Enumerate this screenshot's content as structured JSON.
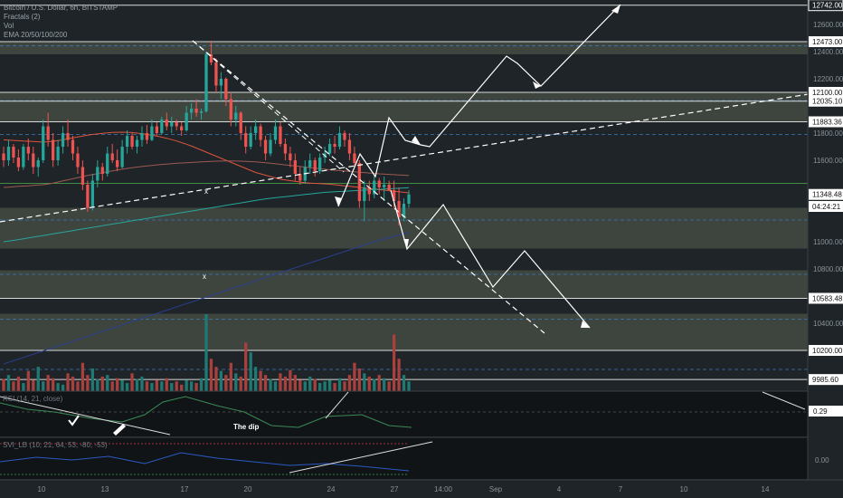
{
  "legend": {
    "symbol": "Bitcoin / U.S. Dollar, 6h, BITSTAMP",
    "fractals": "Fractals (2)",
    "vol": "Vol",
    "ema": "EMA 20/50/100/200"
  },
  "panes": {
    "rsi_label": "RSI (14, 21, close)",
    "lower_label": "SVI_LB (10, 21, 64, 53, -80, -53)",
    "annotation_dip": "The dip"
  },
  "colors": {
    "background": "#1e2427",
    "up": "#26a69a",
    "down": "#ef5350",
    "zone_fill": "#4a4f47",
    "trend_line": "#ffffff"
  },
  "chart_data": {
    "type": "candlestick",
    "title": "Bitcoin / U.S. Dollar, 6h, BITSTAMP",
    "price_axis": {
      "ticks": [
        12600,
        12400,
        12200,
        11800,
        11600,
        11000,
        10800,
        10400
      ],
      "ylim": [
        9900,
        12780
      ],
      "labels": [
        {
          "value": 12742.0,
          "text": "12742.00",
          "style": "outline"
        },
        {
          "value": 12473.0,
          "text": "12473.00",
          "style": "line"
        },
        {
          "value": 12100.0,
          "text": "12100.00",
          "style": "line"
        },
        {
          "value": 12035.1,
          "text": "12035.10",
          "style": "line"
        },
        {
          "value": 11883.36,
          "text": "11883.36",
          "style": "line"
        },
        {
          "value": 11348.48,
          "text": "11348.48",
          "style": "price"
        },
        {
          "value": 11260,
          "text": "04:24:21",
          "style": "price"
        },
        {
          "value": 10583.48,
          "text": "10583.48",
          "style": "line"
        },
        {
          "value": 10200.0,
          "text": "10200.00",
          "style": "line"
        },
        {
          "value": 9985.6,
          "text": "9985.60",
          "style": "line"
        }
      ]
    },
    "rsi_axis": {
      "label": "0.29"
    },
    "lower_axis": {
      "label": "0.00"
    },
    "time_axis": {
      "ticks": [
        "10",
        "13",
        "17",
        "20",
        "24",
        "27",
        "14:00",
        "Sep",
        "4",
        "7",
        "10",
        "14"
      ]
    },
    "zones": [
      {
        "from": 12380,
        "to": 12473
      },
      {
        "from": 11883.36,
        "to": 12100
      },
      {
        "from": 10950,
        "to": 11250
      },
      {
        "from": 10583.48,
        "to": 10790
      },
      {
        "from": 10200,
        "to": 10470
      }
    ],
    "series": [
      {
        "name": "BTC/USD",
        "kind": "ohlc",
        "values": [
          [
            11650,
            11700,
            11550,
            11600
          ],
          [
            11600,
            11750,
            11560,
            11700
          ],
          [
            11700,
            11720,
            11580,
            11620
          ],
          [
            11620,
            11680,
            11520,
            11550
          ],
          [
            11550,
            11720,
            11530,
            11700
          ],
          [
            11700,
            11760,
            11600,
            11650
          ],
          [
            11650,
            11700,
            11500,
            11550
          ],
          [
            11550,
            11620,
            11480,
            11600
          ],
          [
            11600,
            11900,
            11580,
            11850
          ],
          [
            11850,
            11950,
            11700,
            11750
          ],
          [
            11750,
            11800,
            11550,
            11600
          ],
          [
            11600,
            11750,
            11560,
            11700
          ],
          [
            11700,
            11850,
            11650,
            11800
          ],
          [
            11800,
            11900,
            11700,
            11750
          ],
          [
            11750,
            11780,
            11600,
            11650
          ],
          [
            11650,
            11700,
            11500,
            11550
          ],
          [
            11550,
            11600,
            11380,
            11420
          ],
          [
            11420,
            11450,
            11220,
            11250
          ],
          [
            11250,
            11500,
            11230,
            11450
          ],
          [
            11450,
            11600,
            11400,
            11550
          ],
          [
            11550,
            11580,
            11450,
            11500
          ],
          [
            11500,
            11700,
            11480,
            11650
          ],
          [
            11650,
            11720,
            11580,
            11600
          ],
          [
            11600,
            11680,
            11520,
            11550
          ],
          [
            11550,
            11750,
            11540,
            11700
          ],
          [
            11700,
            11820,
            11650,
            11780
          ],
          [
            11780,
            11800,
            11680,
            11700
          ],
          [
            11700,
            11780,
            11650,
            11750
          ],
          [
            11750,
            11850,
            11700,
            11800
          ],
          [
            11800,
            11860,
            11720,
            11750
          ],
          [
            11750,
            11900,
            11740,
            11850
          ],
          [
            11850,
            11880,
            11780,
            11800
          ],
          [
            11800,
            11920,
            11790,
            11900
          ],
          [
            11900,
            11950,
            11820,
            11850
          ],
          [
            11850,
            11920,
            11800,
            11880
          ],
          [
            11880,
            11900,
            11820,
            11850
          ],
          [
            11850,
            11880,
            11780,
            11820
          ],
          [
            11820,
            12000,
            11810,
            11950
          ],
          [
            11950,
            12020,
            11900,
            11980
          ],
          [
            11980,
            12050,
            11920,
            11950
          ],
          [
            11950,
            11980,
            11900,
            11960
          ],
          [
            11960,
            12400,
            11950,
            12380
          ],
          [
            12380,
            12480,
            12300,
            12320
          ],
          [
            12320,
            12350,
            12100,
            12150
          ],
          [
            12150,
            12250,
            12050,
            12200
          ],
          [
            12200,
            12210,
            12000,
            12050
          ],
          [
            12050,
            12100,
            11850,
            11900
          ],
          [
            11900,
            12000,
            11850,
            11950
          ],
          [
            11950,
            11960,
            11750,
            11800
          ],
          [
            11800,
            11850,
            11650,
            11700
          ],
          [
            11700,
            11850,
            11680,
            11800
          ],
          [
            11800,
            11900,
            11750,
            11850
          ],
          [
            11850,
            11870,
            11700,
            11750
          ],
          [
            11750,
            11780,
            11600,
            11650
          ],
          [
            11650,
            11800,
            11630,
            11750
          ],
          [
            11750,
            11900,
            11720,
            11850
          ],
          [
            11850,
            11880,
            11700,
            11720
          ],
          [
            11720,
            11760,
            11600,
            11650
          ],
          [
            11650,
            11700,
            11550,
            11600
          ],
          [
            11600,
            11650,
            11450,
            11500
          ],
          [
            11500,
            11550,
            11420,
            11450
          ],
          [
            11450,
            11600,
            11430,
            11550
          ],
          [
            11550,
            11650,
            11500,
            11600
          ],
          [
            11600,
            11620,
            11480,
            11520
          ],
          [
            11520,
            11650,
            11500,
            11620
          ],
          [
            11620,
            11700,
            11580,
            11650
          ],
          [
            11650,
            11760,
            11630,
            11720
          ],
          [
            11720,
            11780,
            11650,
            11700
          ],
          [
            11700,
            11850,
            11680,
            11800
          ],
          [
            11800,
            11820,
            11700,
            11750
          ],
          [
            11750,
            11800,
            11600,
            11650
          ],
          [
            11650,
            11700,
            11550,
            11580
          ],
          [
            11580,
            11600,
            11250,
            11300
          ],
          [
            11300,
            11450,
            11150,
            11400
          ],
          [
            11400,
            11450,
            11300,
            11350
          ],
          [
            11350,
            11500,
            11320,
            11450
          ],
          [
            11450,
            11470,
            11350,
            11400
          ],
          [
            11400,
            11480,
            11300,
            11420
          ],
          [
            11420,
            11450,
            11380,
            11380
          ],
          [
            11380,
            11450,
            11250,
            11300
          ],
          [
            11300,
            11400,
            11120,
            11180
          ],
          [
            11180,
            11320,
            11150,
            11280
          ],
          [
            11280,
            11380,
            11250,
            11348.48
          ]
        ]
      },
      {
        "name": "EMA 20",
        "values": [
          11750,
          11748,
          11746,
          11744,
          11742,
          11740,
          11738,
          11736,
          11734,
          11736,
          11740,
          11745,
          11750,
          11758,
          11765,
          11772,
          11778,
          11785,
          11790,
          11794,
          11798,
          11802,
          11805,
          11806,
          11807,
          11806,
          11804,
          11800,
          11795,
          11790,
          11784,
          11778,
          11770,
          11762,
          11752,
          11742,
          11730,
          11718,
          11705,
          11690,
          11675,
          11660,
          11645,
          11630,
          11615,
          11600,
          11585,
          11570,
          11555,
          11540,
          11525,
          11510,
          11500,
          11490,
          11480,
          11470,
          11460,
          11455,
          11450,
          11445,
          11440,
          11435,
          11432,
          11430,
          11428,
          11426,
          11424,
          11420,
          11416,
          11412,
          11408,
          11404,
          11400,
          11396,
          11392,
          11388,
          11384,
          11380,
          11376,
          11372,
          11368,
          11364,
          11360
        ]
      },
      {
        "name": "EMA 50",
        "values": [
          11400,
          11402,
          11405,
          11408,
          11410,
          11412,
          11415,
          11418,
          11420,
          11425,
          11432,
          11440,
          11448,
          11456,
          11464,
          11472,
          11480,
          11488,
          11495,
          11502,
          11509,
          11516,
          11522,
          11528,
          11534,
          11540,
          11545,
          11550,
          11554,
          11558,
          11562,
          11566,
          11569,
          11572,
          11575,
          11578,
          11580,
          11582,
          11584,
          11586,
          11588,
          11590,
          11592,
          11593,
          11594,
          11595,
          11595,
          11594,
          11593,
          11592,
          11590,
          11588,
          11585,
          11582,
          11578,
          11574,
          11570,
          11566,
          11562,
          11558,
          11554,
          11550,
          11546,
          11542,
          11538,
          11534,
          11530,
          11527,
          11524,
          11521,
          11518,
          11515,
          11512,
          11509,
          11506,
          11503,
          11500,
          11498,
          11496,
          11494,
          11492,
          11490,
          11488
        ]
      },
      {
        "name": "EMA 100",
        "values": [
          11000,
          11005,
          11010,
          11016,
          11022,
          11028,
          11034,
          11040,
          11046,
          11052,
          11058,
          11064,
          11070,
          11076,
          11082,
          11088,
          11094,
          11100,
          11106,
          11112,
          11118,
          11124,
          11130,
          11136,
          11142,
          11148,
          11154,
          11160,
          11166,
          11172,
          11178,
          11184,
          11190,
          11196,
          11202,
          11208,
          11214,
          11220,
          11226,
          11232,
          11238,
          11244,
          11250,
          11256,
          11262,
          11268,
          11274,
          11280,
          11286,
          11292,
          11298,
          11304,
          11310,
          11316,
          11320,
          11324,
          11328,
          11332,
          11336,
          11340,
          11344,
          11348,
          11352,
          11356,
          11360,
          11364,
          11366,
          11368,
          11370,
          11372,
          11374,
          11376,
          11378,
          11380,
          11382,
          11384,
          11386,
          11388,
          11390,
          11392,
          11394,
          11396,
          11398
        ]
      },
      {
        "name": "EMA 200",
        "values": [
          10100,
          10112,
          10124,
          10136,
          10148,
          10160,
          10172,
          10184,
          10196,
          10208,
          10220,
          10232,
          10244,
          10256,
          10268,
          10280,
          10292,
          10304,
          10316,
          10328,
          10340,
          10352,
          10364,
          10376,
          10388,
          10400,
          10412,
          10424,
          10436,
          10448,
          10460,
          10472,
          10484,
          10496,
          10508,
          10520,
          10532,
          10544,
          10556,
          10568,
          10580,
          10592,
          10604,
          10616,
          10628,
          10640,
          10652,
          10664,
          10676,
          10688,
          10700,
          10712,
          10724,
          10736,
          10748,
          10760,
          10772,
          10784,
          10796,
          10808,
          10820,
          10832,
          10844,
          10856,
          10868,
          10880,
          10892,
          10904,
          10916,
          10928,
          10940,
          10952,
          10964,
          10976,
          10988,
          11000,
          11010,
          11020,
          11030,
          11040,
          11050,
          11060,
          11070
        ]
      },
      {
        "name": "Vol",
        "values": [
          15,
          20,
          12,
          18,
          10,
          25,
          14,
          30,
          12,
          20,
          16,
          10,
          8,
          22,
          18,
          12,
          35,
          20,
          28,
          15,
          18,
          20,
          12,
          16,
          14,
          10,
          22,
          15,
          18,
          12,
          10,
          14,
          12,
          16,
          10,
          12,
          8,
          14,
          12,
          10,
          16,
          95,
          40,
          30,
          25,
          20,
          35,
          22,
          18,
          60,
          48,
          30,
          25,
          20,
          15,
          12,
          22,
          18,
          26,
          20,
          14,
          12,
          18,
          15,
          10,
          12,
          14,
          10,
          16,
          12,
          20,
          35,
          28,
          22,
          18,
          15,
          20,
          16,
          12,
          70,
          40,
          20,
          12
        ]
      }
    ]
  }
}
